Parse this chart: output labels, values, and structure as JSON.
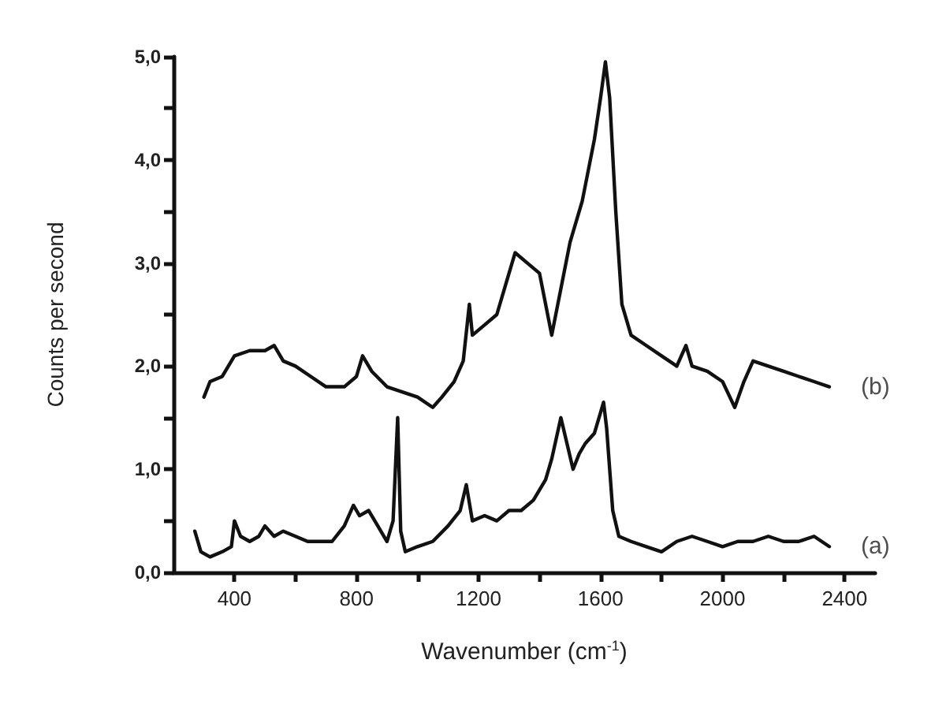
{
  "chart_data": {
    "type": "line",
    "xlabel": "Wavenumber (cm$^{-1}$)",
    "ylabel": "Counts per second",
    "xlim": [
      200,
      2500
    ],
    "xticks": [
      {
        "value": 400,
        "label": "400"
      },
      {
        "value": 600,
        "label": null
      },
      {
        "value": 800,
        "label": "800"
      },
      {
        "value": 1000,
        "label": null
      },
      {
        "value": 1200,
        "label": "1200"
      },
      {
        "value": 1400,
        "label": null
      },
      {
        "value": 1600,
        "label": "1600"
      },
      {
        "value": 1800,
        "label": null
      },
      {
        "value": 2000,
        "label": "2000"
      },
      {
        "value": 2200,
        "label": null
      },
      {
        "value": 2400,
        "label": "2400"
      }
    ],
    "ylim": [
      0,
      5
    ],
    "yticks": [
      {
        "value": 0,
        "label": "0,0"
      },
      {
        "value": 0.5,
        "label": null
      },
      {
        "value": 1,
        "label": "1,0"
      },
      {
        "value": 1.5,
        "label": null
      },
      {
        "value": 2,
        "label": "2,0"
      },
      {
        "value": 2.5,
        "label": null
      },
      {
        "value": 3,
        "label": "3,0"
      },
      {
        "value": 3.5,
        "label": null
      },
      {
        "value": 4,
        "label": "4,0"
      },
      {
        "value": 4.5,
        "label": null
      },
      {
        "value": 5,
        "label": "5,0"
      }
    ],
    "grid": false,
    "marker": "none",
    "line_style": "solid",
    "annotations": [
      "(a)",
      "(b)"
    ],
    "series": [
      {
        "color": "#111111",
        "x": [
          270,
          290,
          320,
          360,
          390,
          400,
          420,
          450,
          480,
          500,
          530,
          560,
          600,
          640,
          680,
          720,
          760,
          790,
          810,
          840,
          870,
          900,
          920,
          935,
          945,
          960,
          1000,
          1050,
          1100,
          1140,
          1160,
          1180,
          1220,
          1260,
          1300,
          1340,
          1380,
          1420,
          1440,
          1470,
          1490,
          1510,
          1530,
          1550,
          1580,
          1600,
          1610,
          1620,
          1640,
          1660,
          1700,
          1750,
          1800,
          1850,
          1900,
          1950,
          2000,
          2050,
          2100,
          2150,
          2200,
          2250,
          2300,
          2350
        ],
        "values": [
          0.4,
          0.2,
          0.15,
          0.2,
          0.25,
          0.5,
          0.35,
          0.3,
          0.35,
          0.45,
          0.35,
          0.4,
          0.35,
          0.3,
          0.3,
          0.3,
          0.45,
          0.65,
          0.55,
          0.6,
          0.45,
          0.3,
          0.5,
          1.5,
          0.4,
          0.2,
          0.25,
          0.3,
          0.45,
          0.6,
          0.85,
          0.5,
          0.55,
          0.5,
          0.6,
          0.6,
          0.7,
          0.9,
          1.1,
          1.5,
          1.25,
          1.0,
          1.15,
          1.25,
          1.35,
          1.55,
          1.65,
          1.4,
          0.6,
          0.35,
          0.3,
          0.25,
          0.2,
          0.3,
          0.35,
          0.3,
          0.25,
          0.3,
          0.3,
          0.35,
          0.3,
          0.3,
          0.35,
          0.25
        ]
      },
      {
        "color": "#111111",
        "x": [
          300,
          320,
          360,
          400,
          450,
          500,
          530,
          560,
          600,
          650,
          700,
          760,
          800,
          820,
          850,
          900,
          950,
          1000,
          1050,
          1080,
          1120,
          1150,
          1170,
          1180,
          1220,
          1260,
          1300,
          1320,
          1360,
          1400,
          1420,
          1440,
          1460,
          1500,
          1540,
          1580,
          1600,
          1616,
          1630,
          1650,
          1670,
          1700,
          1750,
          1800,
          1850,
          1880,
          1900,
          1950,
          2000,
          2040,
          2070,
          2100,
          2150,
          2200,
          2250,
          2300,
          2350
        ],
        "values": [
          1.7,
          1.85,
          1.9,
          2.1,
          2.15,
          2.15,
          2.2,
          2.05,
          2.0,
          1.9,
          1.8,
          1.8,
          1.9,
          2.1,
          1.95,
          1.8,
          1.75,
          1.7,
          1.6,
          1.7,
          1.85,
          2.05,
          2.6,
          2.3,
          2.4,
          2.5,
          2.9,
          3.1,
          3.0,
          2.9,
          2.6,
          2.3,
          2.6,
          3.2,
          3.6,
          4.2,
          4.6,
          4.95,
          4.6,
          3.5,
          2.6,
          2.3,
          2.2,
          2.1,
          2.0,
          2.2,
          2.0,
          1.95,
          1.85,
          1.6,
          1.85,
          2.05,
          2.0,
          1.95,
          1.9,
          1.85,
          1.8
        ]
      }
    ]
  }
}
